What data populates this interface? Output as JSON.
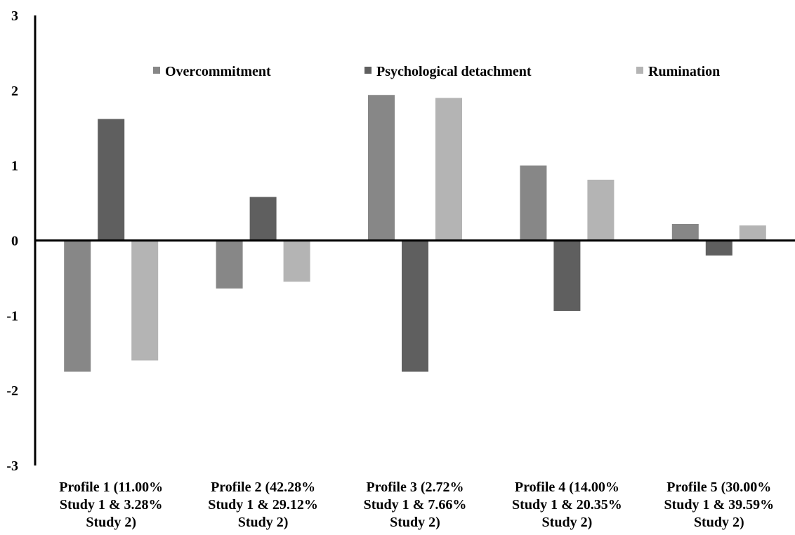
{
  "chart_data": {
    "type": "bar",
    "categories": [
      "Profile 1 (11.00% Study 1 & 3.28% Study 2)",
      "Profile 2 (42.28% Study 1 & 29.12% Study 2)",
      "Profile 3 (2.72% Study 1 & 7.66% Study 2)",
      "Profile 4 (14.00% Study 1 & 20.35% Study 2)",
      "Profile 5 (30.00% Study 1 & 39.59% Study 2)"
    ],
    "category_lines": [
      [
        "Profile 1 (11.00%",
        "Study 1 & 3.28%",
        "Study 2)"
      ],
      [
        "Profile 2 (42.28%",
        "Study 1 & 29.12%",
        "Study 2)"
      ],
      [
        "Profile 3 (2.72%",
        "Study 1 & 7.66%",
        "Study 2)"
      ],
      [
        "Profile 4 (14.00%",
        "Study 1 & 20.35%",
        "Study 2)"
      ],
      [
        "Profile 5 (30.00%",
        "Study 1 & 39.59%",
        "Study 2)"
      ]
    ],
    "series": [
      {
        "name": "Overcommitment",
        "color": "#878787",
        "values": [
          -1.75,
          -0.64,
          1.94,
          1.0,
          0.22
        ]
      },
      {
        "name": "Psychological detachment",
        "color": "#5f5f5f",
        "values": [
          1.62,
          0.58,
          -1.75,
          -0.94,
          -0.2
        ]
      },
      {
        "name": "Rumination",
        "color": "#b4b4b4",
        "values": [
          -1.6,
          -0.55,
          1.9,
          0.81,
          0.2
        ]
      }
    ],
    "ylim": [
      -3,
      3
    ],
    "yticks": [
      3,
      2,
      1,
      0,
      -1,
      -2,
      -3
    ],
    "ytick_labels": [
      "3",
      "2",
      "1",
      "0",
      "-1",
      "-2",
      "-3"
    ],
    "title": "",
    "xlabel": "",
    "ylabel": "",
    "grid": false,
    "legend_position": "top"
  }
}
